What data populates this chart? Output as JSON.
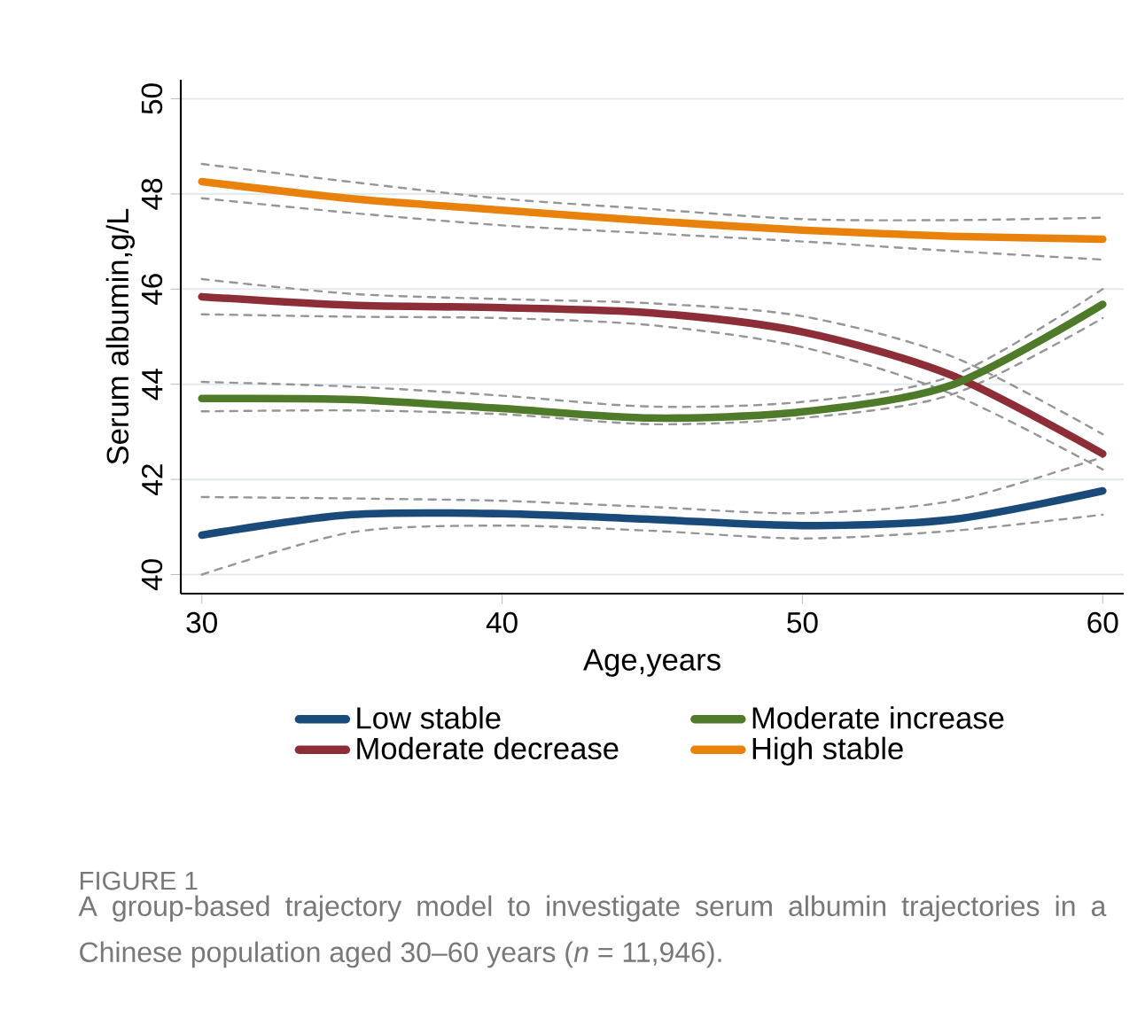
{
  "chart_data": {
    "type": "line",
    "xlabel": "Age,years",
    "ylabel": "Serum albumin,g/L",
    "x": [
      30,
      35,
      40,
      45,
      50,
      55,
      60
    ],
    "series": [
      {
        "color": "#969696",
        "line_style": "dashed",
        "values": [
          40.0,
          40.89,
          41.03,
          40.92,
          40.76,
          40.92,
          41.26
        ]
      },
      {
        "color": "#969696",
        "line_style": "dashed",
        "values": [
          41.63,
          41.6,
          41.55,
          41.42,
          41.29,
          41.55,
          42.47
        ]
      },
      {
        "color": "#969696",
        "line_style": "dashed",
        "values": [
          45.47,
          45.42,
          45.39,
          45.24,
          44.78,
          43.79,
          42.21
        ]
      },
      {
        "color": "#969696",
        "line_style": "dashed",
        "values": [
          46.21,
          45.9,
          45.79,
          45.7,
          45.43,
          44.58,
          42.95
        ]
      },
      {
        "color": "#969696",
        "line_style": "dashed",
        "values": [
          43.43,
          43.45,
          43.37,
          43.16,
          43.29,
          43.79,
          45.39
        ]
      },
      {
        "color": "#969696",
        "line_style": "dashed",
        "values": [
          44.05,
          43.95,
          43.76,
          43.53,
          43.63,
          44.18,
          46.0
        ]
      },
      {
        "color": "#969696",
        "line_style": "dashed",
        "values": [
          47.91,
          47.6,
          47.34,
          47.17,
          47.0,
          46.8,
          46.62
        ]
      },
      {
        "color": "#969696",
        "line_style": "dashed",
        "values": [
          48.63,
          48.25,
          47.9,
          47.68,
          47.47,
          47.45,
          47.5
        ]
      },
      {
        "name": "Low stable",
        "color": "#1a4a7a",
        "values": [
          40.83,
          41.26,
          41.28,
          41.16,
          41.03,
          41.16,
          41.76
        ]
      },
      {
        "name": "Moderate decrease",
        "color": "#8c2d38",
        "values": [
          45.84,
          45.66,
          45.61,
          45.5,
          45.1,
          44.18,
          42.54
        ]
      },
      {
        "name": "Moderate increase",
        "color": "#4e7a2a",
        "values": [
          43.7,
          43.68,
          43.49,
          43.29,
          43.42,
          43.99,
          45.68
        ]
      },
      {
        "name": "High stable",
        "color": "#e8820c",
        "values": [
          48.26,
          47.9,
          47.66,
          47.43,
          47.24,
          47.11,
          47.05
        ]
      }
    ],
    "xlim": [
      29.3,
      60.7
    ],
    "ylim": [
      39.6,
      50.4
    ],
    "xticks": [
      30,
      40,
      50,
      60
    ],
    "yticks": [
      40,
      42,
      44,
      46,
      48,
      50
    ],
    "grid": "y",
    "legend": "bottom",
    "line_style": "solid",
    "annotations": [
      "FIGURE 1",
      "A group-based trajectory model to investigate serum albumin trajectories in a Chinese population aged 30–60 years (*n* = 11,946)."
    ]
  }
}
